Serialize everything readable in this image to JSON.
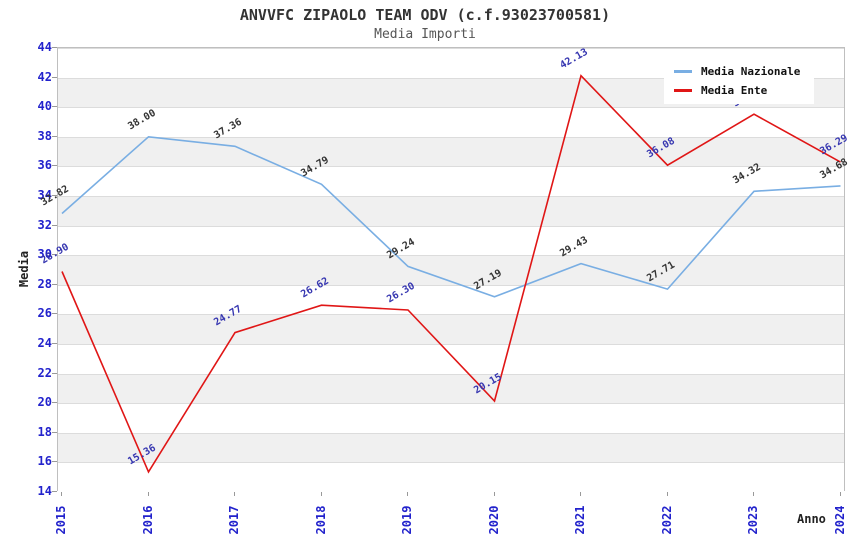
{
  "header": {
    "title": "ANVVFC ZIPAOLO TEAM ODV (c.f.93023700581)",
    "subtitle": "Media Importi"
  },
  "chart_data": {
    "type": "line",
    "categories": [
      "2015",
      "2016",
      "2017",
      "2018",
      "2019",
      "2020",
      "2021",
      "2022",
      "2023",
      "2024"
    ],
    "series": [
      {
        "name": "Media Nazionale",
        "color": "#79aee3",
        "label_color": "#333333",
        "values": [
          32.82,
          38.0,
          37.36,
          34.79,
          29.24,
          27.19,
          29.43,
          27.71,
          34.32,
          34.68
        ]
      },
      {
        "name": "Media Ente",
        "color": "#e01616",
        "label_color": "#3535b0",
        "values": [
          28.9,
          15.36,
          24.77,
          26.62,
          26.3,
          20.15,
          42.13,
          36.08,
          39.53,
          36.29
        ]
      }
    ],
    "xlabel": "Anno",
    "ylabel": "Media",
    "ylim": [
      14,
      44
    ],
    "ytick_step": 2,
    "grid": "horizontal-bands",
    "band_colors": [
      "#ffffff",
      "#f0f0f0"
    ],
    "axis_tick_color": "#2222cc",
    "legend_position": "top-right",
    "label_format": "0.00"
  }
}
